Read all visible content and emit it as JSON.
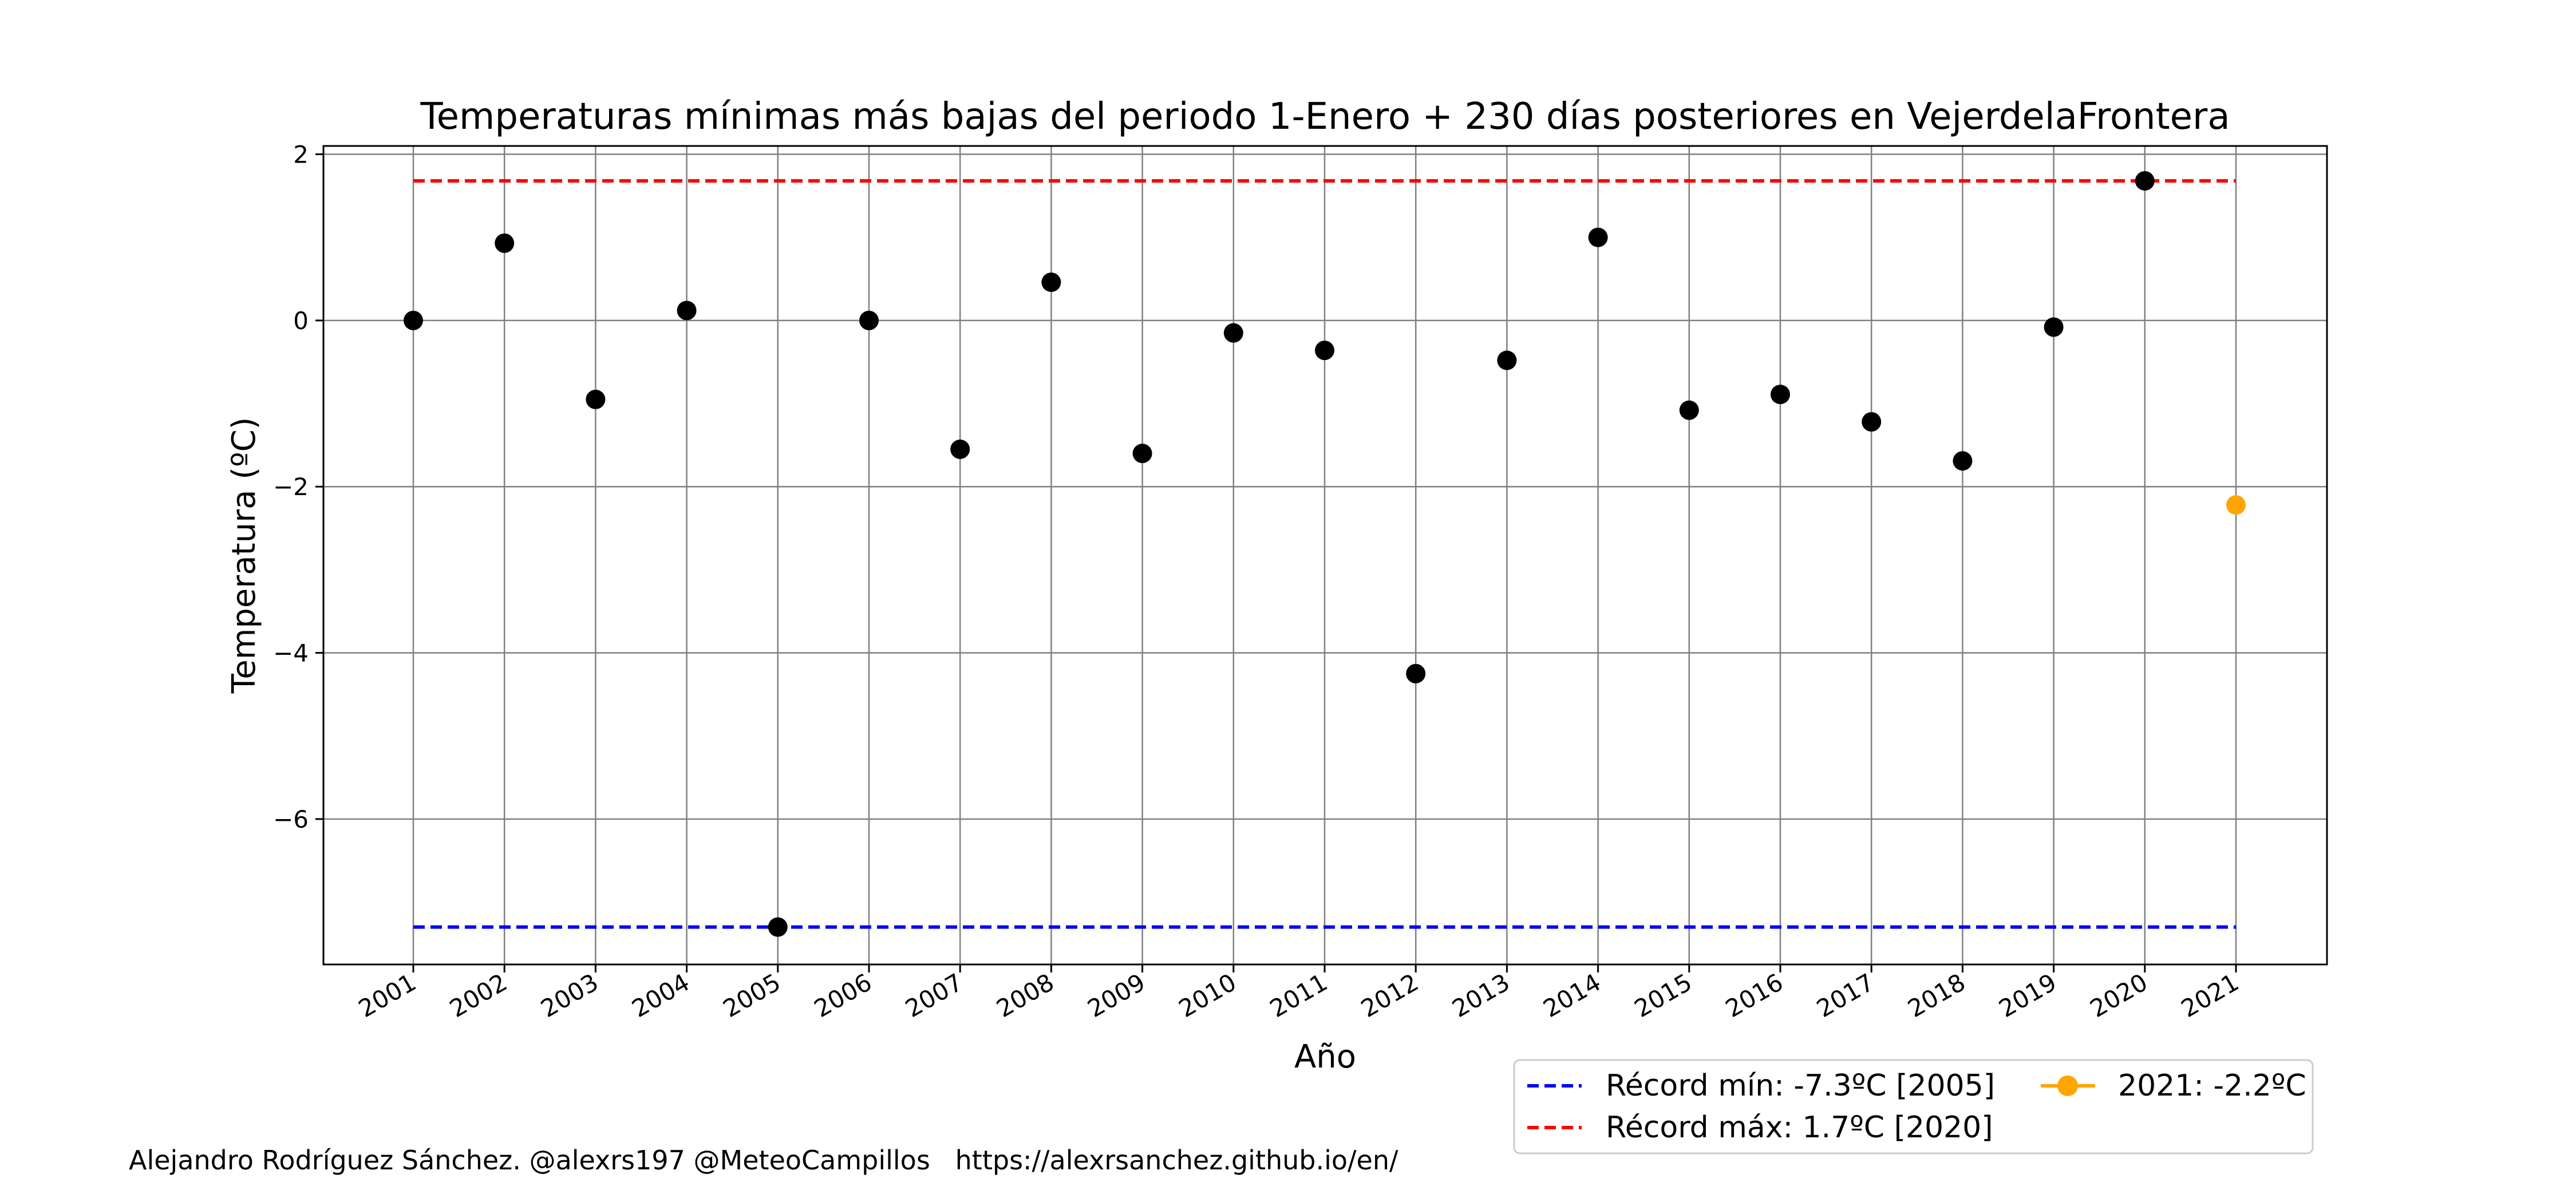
{
  "chart_data": {
    "type": "scatter",
    "title": "Temperaturas mínimas más bajas del periodo 1-Enero + 230 días posteriores en VejerdelaFrontera",
    "xlabel": "Año",
    "ylabel": "Temperatura (ºC)",
    "categories": [
      "2001",
      "2002",
      "2003",
      "2004",
      "2005",
      "2006",
      "2007",
      "2008",
      "2009",
      "2010",
      "2011",
      "2012",
      "2013",
      "2014",
      "2015",
      "2016",
      "2017",
      "2018",
      "2019",
      "2020",
      "2021"
    ],
    "yticks": [
      "2",
      "0",
      "−2",
      "−4",
      "−6"
    ],
    "ytick_values": [
      2,
      0,
      -2,
      -4,
      -6
    ],
    "ylim": [
      -7.75,
      2.1
    ],
    "grid": true,
    "series": [
      {
        "color": "#000000",
        "x": [
          "2001",
          "2002",
          "2003",
          "2004",
          "2005",
          "2006",
          "2007",
          "2008",
          "2009",
          "2010",
          "2011",
          "2012",
          "2013",
          "2014",
          "2015",
          "2016",
          "2017",
          "2018",
          "2019",
          "2020"
        ],
        "values": [
          0.0,
          0.93,
          -0.95,
          0.12,
          -7.3,
          0.0,
          -1.55,
          0.46,
          -1.6,
          -0.15,
          -0.36,
          -4.25,
          -0.48,
          1.0,
          -1.08,
          -0.89,
          -1.22,
          -1.69,
          -0.08,
          1.68
        ]
      },
      {
        "name": "2021: -2.2ºC",
        "color": "#ffa500",
        "x": [
          "2021"
        ],
        "values": [
          -2.22
        ]
      }
    ],
    "reference_lines": [
      {
        "name": "Récord mín: -7.3ºC [2005]",
        "value": -7.3,
        "color": "#0000ff",
        "style": "dashed"
      },
      {
        "name": "Récord máx: 1.7ºC [2020]",
        "value": 1.68,
        "color": "#ff0000",
        "style": "dashed"
      }
    ],
    "legend_position": "bottom-right"
  },
  "credit": "Alejandro Rodríguez Sánchez. @alexrs197 @MeteoCampillos   https://alexrsanchez.github.io/en/"
}
